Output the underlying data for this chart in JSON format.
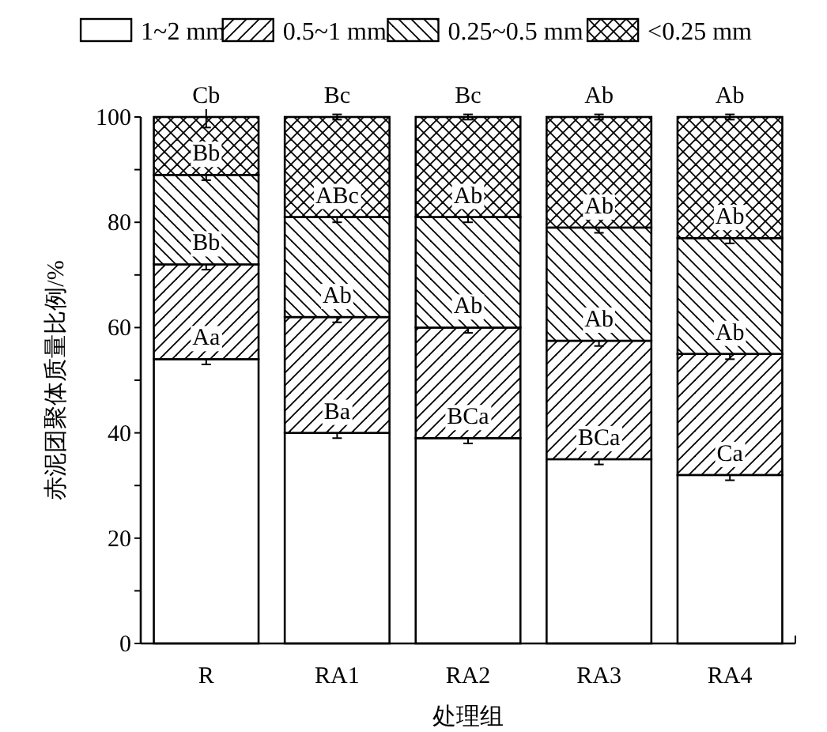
{
  "chart_data": {
    "type": "bar",
    "stacked": true,
    "xlabel": "处理组",
    "ylabel": "赤泥团聚体质量比例/%",
    "categories": [
      "R",
      "RA1",
      "RA2",
      "RA3",
      "RA4"
    ],
    "series": [
      {
        "name": "1~2 mm",
        "color": "#ffffff",
        "values": [
          54,
          40,
          39,
          35,
          32
        ],
        "errors": [
          1,
          1,
          1,
          1,
          1
        ]
      },
      {
        "name": "0.5~1 mm",
        "color": "#000000",
        "values": [
          18,
          22,
          21,
          22.5,
          23
        ],
        "errors": [
          1,
          1,
          1,
          1,
          1
        ]
      },
      {
        "name": "0.25~0.5 mm",
        "color": "#000000",
        "values": [
          17,
          19,
          21,
          21.5,
          22
        ],
        "errors": [
          1,
          1,
          1,
          1,
          1
        ]
      },
      {
        "name": "<0.25 mm",
        "color": "#000000",
        "values": [
          11,
          19,
          19,
          21,
          23
        ],
        "errors": [
          2,
          0.5,
          0.5,
          0.5,
          0.5
        ]
      }
    ],
    "ylim": [
      0,
      100
    ],
    "yticks": [
      0,
      {
        "value": 10,
        "label": null
      },
      20,
      {
        "value": 30,
        "label": null
      },
      40,
      {
        "value": 50,
        "label": null
      },
      60,
      {
        "value": 70,
        "label": null
      },
      80,
      {
        "value": 90,
        "label": null
      },
      100
    ],
    "legend": "top",
    "annotations": [
      {
        "text": "Aa",
        "x": "R",
        "y": 54
      },
      {
        "text": "Bb",
        "x": "R",
        "y": 72
      },
      {
        "text": "Bb",
        "x": "R",
        "y": 89
      },
      {
        "text": "Cb",
        "x": "R",
        "y": 100
      },
      {
        "text": "Ba",
        "x": "RA1",
        "y": 40
      },
      {
        "text": "Ab",
        "x": "RA1",
        "y": 62
      },
      {
        "text": "ABc",
        "x": "RA1",
        "y": 81
      },
      {
        "text": "Bc",
        "x": "RA1",
        "y": 100
      },
      {
        "text": "BCa",
        "x": "RA2",
        "y": 39
      },
      {
        "text": "Ab",
        "x": "RA2",
        "y": 60
      },
      {
        "text": "Ab",
        "x": "RA2",
        "y": 81
      },
      {
        "text": "Bc",
        "x": "RA2",
        "y": 100
      },
      {
        "text": "BCa",
        "x": "RA3",
        "y": 35
      },
      {
        "text": "Ab",
        "x": "RA3",
        "y": 57.5
      },
      {
        "text": "Ab",
        "x": "RA3",
        "y": 79
      },
      {
        "text": "Ab",
        "x": "RA3",
        "y": 100
      },
      {
        "text": "Ca",
        "x": "RA4",
        "y": 32
      },
      {
        "text": "Ab",
        "x": "RA4",
        "y": 55
      },
      {
        "text": "Ab",
        "x": "RA4",
        "y": 77
      },
      {
        "text": "Ab",
        "x": "RA4",
        "y": 100
      }
    ]
  }
}
